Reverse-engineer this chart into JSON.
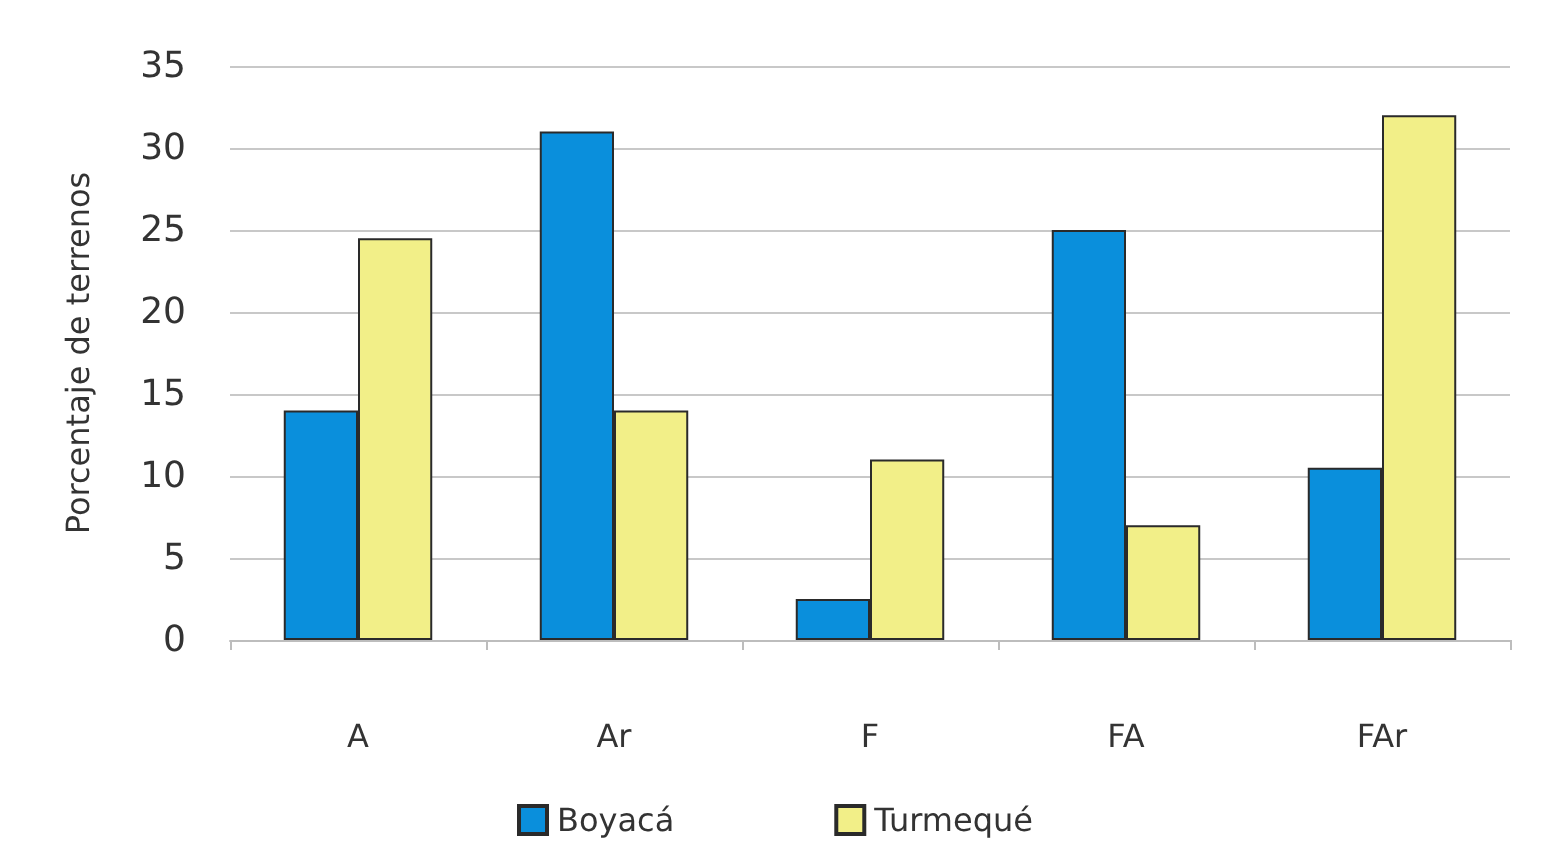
{
  "chart_data": {
    "type": "bar",
    "ylabel": "Porcentaje de terrenos",
    "categories": [
      "A",
      "Ar",
      "F",
      "FA",
      "FAr"
    ],
    "series": [
      {
        "name": "Boyacá",
        "color": "#0a8fdc",
        "values": [
          14,
          31,
          2.5,
          25,
          10.5
        ]
      },
      {
        "name": "Turmequé",
        "color": "#f2ef88",
        "values": [
          24.5,
          14,
          11,
          7,
          32
        ]
      }
    ],
    "ylim": [
      0,
      35
    ],
    "yticks": [
      0,
      5,
      10,
      15,
      20,
      25,
      30,
      35
    ],
    "grid": "y",
    "legend": "bottom"
  }
}
